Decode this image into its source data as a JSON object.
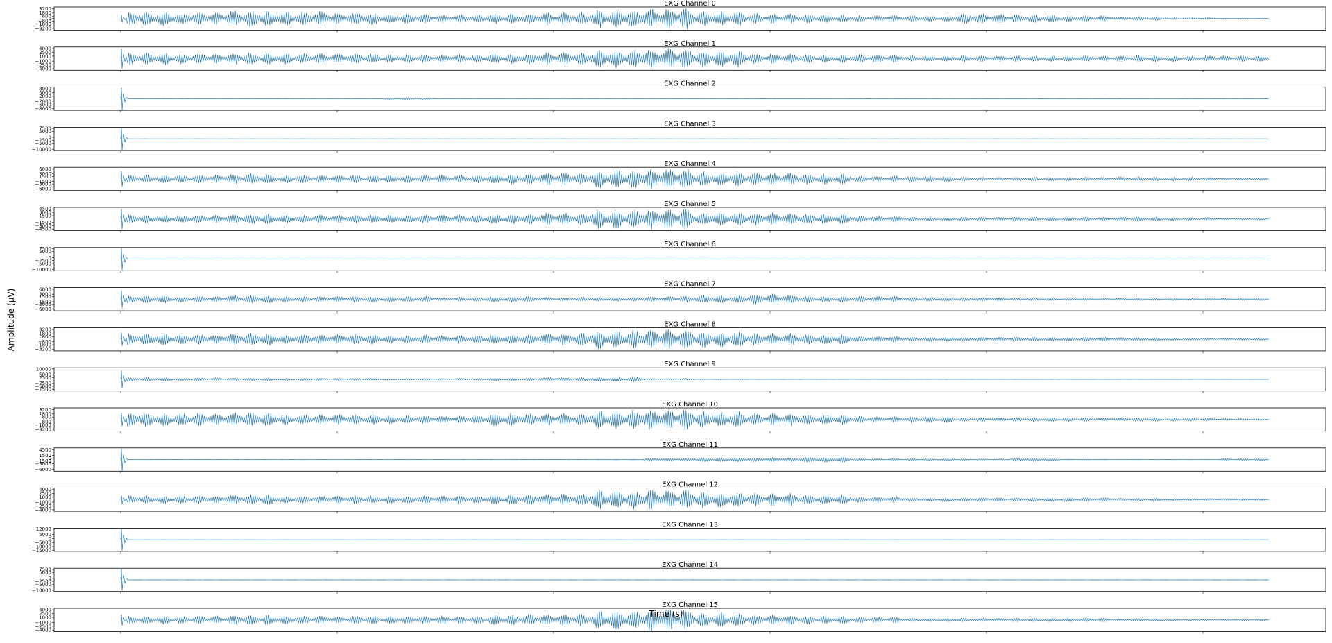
{
  "chart_data": {
    "type": "line",
    "ylabel": "Amplitude (μV)",
    "xlabel": "Time (s)",
    "line_color": "#1f77b4",
    "x_ticks_shown": false,
    "grid": false,
    "panels": [
      {
        "title": "EXG Channel 0",
        "yticks": [
          3200,
          1800,
          800,
          0,
          -800,
          -1800,
          -3200
        ],
        "ylim": [
          -3800,
          3800
        ],
        "spike": 0.35,
        "bursts": [
          0.7,
          0.6,
          0.8,
          0.7,
          0.6,
          0.5,
          0.4,
          0.5,
          0.6,
          0.9,
          1.0,
          0.7,
          0.5,
          0.4,
          0.3,
          0.3,
          0.5,
          0.4,
          0.3,
          0.2,
          0.1,
          0.05
        ]
      },
      {
        "title": "EXG Channel 1",
        "yticks": [
          4000,
          2500,
          1000,
          -1000,
          -2500,
          -4000
        ],
        "ylim": [
          -4600,
          4600
        ],
        "spike": 0.9,
        "bursts": [
          0.6,
          0.5,
          0.6,
          0.5,
          0.5,
          0.4,
          0.4,
          0.5,
          0.6,
          0.9,
          1.0,
          0.8,
          0.5,
          0.4,
          0.4,
          0.3,
          0.3,
          0.3,
          0.3,
          0.3,
          0.3,
          0.3
        ]
      },
      {
        "title": "EXG Channel 2",
        "yticks": [
          8000,
          5000,
          2000,
          -2000,
          -5000,
          -8000
        ],
        "ylim": [
          -9500,
          9500
        ],
        "spike": 1.0,
        "bursts": [
          0.02,
          0.02,
          0.02,
          0.02,
          0.02,
          0.1,
          0.02,
          0.02,
          0.02,
          0.02,
          0.02,
          0.02,
          0.02,
          0.02,
          0.02,
          0.02,
          0.02,
          0.02,
          0.02,
          0.02,
          0.02,
          0.02
        ]
      },
      {
        "title": "EXG Channel 3",
        "yticks": [
          7500,
          5000,
          0,
          -2500,
          -5000,
          -10000
        ],
        "ylim": [
          -11000,
          8500
        ],
        "spike": 1.0,
        "bursts": [
          0.01,
          0.01,
          0.01,
          0.01,
          0.01,
          0.01,
          0.01,
          0.01,
          0.01,
          0.01,
          0.01,
          0.01,
          0.01,
          0.01,
          0.01,
          0.01,
          0.01,
          0.01,
          0.01,
          0.01,
          0.01,
          0.01
        ]
      },
      {
        "title": "EXG Channel 4",
        "yticks": [
          6000,
          3000,
          1500,
          -1500,
          -3000,
          -6000
        ],
        "ylim": [
          -7000,
          7000
        ],
        "spike": 0.7,
        "bursts": [
          0.4,
          0.4,
          0.5,
          0.4,
          0.4,
          0.4,
          0.4,
          0.5,
          0.6,
          0.9,
          1.0,
          0.7,
          0.6,
          0.5,
          0.3,
          0.3,
          0.2,
          0.2,
          0.2,
          0.2,
          0.2,
          0.15
        ]
      },
      {
        "title": "EXG Channel 5",
        "yticks": [
          4500,
          3000,
          1500,
          -1500,
          -3000,
          -4500
        ],
        "ylim": [
          -5200,
          5200
        ],
        "spike": 0.9,
        "bursts": [
          0.4,
          0.4,
          0.5,
          0.4,
          0.4,
          0.4,
          0.4,
          0.5,
          0.6,
          0.9,
          1.0,
          0.7,
          0.6,
          0.5,
          0.3,
          0.2,
          0.2,
          0.2,
          0.2,
          0.2,
          0.15,
          0.1
        ]
      },
      {
        "title": "EXG Channel 6",
        "yticks": [
          7500,
          5000,
          0,
          -2500,
          -5000,
          -10000
        ],
        "ylim": [
          -11000,
          8500
        ],
        "spike": 1.0,
        "bursts": [
          0.01,
          0.01,
          0.01,
          0.01,
          0.01,
          0.01,
          0.01,
          0.01,
          0.01,
          0.01,
          0.01,
          0.01,
          0.01,
          0.01,
          0.01,
          0.01,
          0.01,
          0.01,
          0.01,
          0.01,
          0.01,
          0.01
        ]
      },
      {
        "title": "EXG Channel 7",
        "yticks": [
          6000,
          3000,
          1500,
          -1500,
          -3000,
          -6000
        ],
        "ylim": [
          -7000,
          7000
        ],
        "spike": 0.8,
        "bursts": [
          0.4,
          0.3,
          0.4,
          0.3,
          0.3,
          0.3,
          0.2,
          0.3,
          0.2,
          0.2,
          0.3,
          0.4,
          0.5,
          0.3,
          0.3,
          0.2,
          0.2,
          0.15,
          0.1,
          0.1,
          0.1,
          0.1
        ]
      },
      {
        "title": "EXG Channel 8",
        "yticks": [
          3200,
          1800,
          800,
          -800,
          -1800,
          -3200
        ],
        "ylim": [
          -3800,
          3800
        ],
        "spike": 0.6,
        "bursts": [
          0.6,
          0.5,
          0.6,
          0.5,
          0.5,
          0.4,
          0.4,
          0.5,
          0.6,
          0.9,
          1.0,
          0.8,
          0.6,
          0.5,
          0.3,
          0.2,
          0.2,
          0.2,
          0.2,
          0.15,
          0.1,
          0.1
        ]
      },
      {
        "title": "EXG Channel 9",
        "yticks": [
          10000,
          5000,
          2500,
          -2500,
          -5000,
          -7500
        ],
        "ylim": [
          -9000,
          11000
        ],
        "spike": 0.8,
        "bursts": [
          0.2,
          0.15,
          0.15,
          0.12,
          0.12,
          0.1,
          0.1,
          0.15,
          0.2,
          0.25,
          0.1,
          0.03,
          0.02,
          0.02,
          0.02,
          0.02,
          0.02,
          0.02,
          0.02,
          0.02,
          0.02,
          0.02
        ]
      },
      {
        "title": "EXG Channel 10",
        "yticks": [
          3200,
          1800,
          800,
          -800,
          -1800,
          -3200
        ],
        "ylim": [
          -3800,
          3800
        ],
        "spike": 0.6,
        "bursts": [
          0.7,
          0.6,
          0.7,
          0.5,
          0.5,
          0.4,
          0.4,
          0.6,
          0.6,
          0.9,
          1.0,
          0.8,
          0.6,
          0.5,
          0.3,
          0.3,
          0.2,
          0.2,
          0.2,
          0.2,
          0.15,
          0.1
        ]
      },
      {
        "title": "EXG Channel 11",
        "yticks": [
          4500,
          1500,
          0,
          -1500,
          -3000,
          -6000
        ],
        "ylim": [
          -7000,
          5500
        ],
        "spike": 1.0,
        "bursts": [
          0.02,
          0.02,
          0.02,
          0.02,
          0.02,
          0.02,
          0.02,
          0.02,
          0.02,
          0.05,
          0.15,
          0.2,
          0.2,
          0.25,
          0.1,
          0.1,
          0.08,
          0.15,
          0.05,
          0.03,
          0.03,
          0.1
        ]
      },
      {
        "title": "EXG Channel 12",
        "yticks": [
          4000,
          2500,
          1000,
          -1000,
          -2500,
          -4000
        ],
        "ylim": [
          -4600,
          4600
        ],
        "spike": 0.4,
        "bursts": [
          0.4,
          0.4,
          0.5,
          0.4,
          0.4,
          0.4,
          0.4,
          0.5,
          0.6,
          0.9,
          1.0,
          0.8,
          0.6,
          0.5,
          0.3,
          0.2,
          0.2,
          0.2,
          0.2,
          0.15,
          0.1,
          0.1
        ]
      },
      {
        "title": "EXG Channel 13",
        "yticks": [
          12000,
          5000,
          0,
          -5000,
          -10000,
          -15000
        ],
        "ylim": [
          -16000,
          13000
        ],
        "spike": 1.0,
        "bursts": [
          0.01,
          0.01,
          0.01,
          0.01,
          0.01,
          0.01,
          0.01,
          0.01,
          0.01,
          0.01,
          0.01,
          0.01,
          0.01,
          0.01,
          0.01,
          0.01,
          0.01,
          0.01,
          0.01,
          0.01,
          0.01,
          0.01
        ]
      },
      {
        "title": "EXG Channel 14",
        "yticks": [
          7500,
          5000,
          0,
          -2500,
          -5000,
          -10000
        ],
        "ylim": [
          -11000,
          8500
        ],
        "spike": 1.0,
        "bursts": [
          0.01,
          0.01,
          0.01,
          0.01,
          0.01,
          0.01,
          0.01,
          0.01,
          0.01,
          0.01,
          0.01,
          0.01,
          0.01,
          0.01,
          0.01,
          0.01,
          0.01,
          0.01,
          0.01,
          0.01,
          0.01,
          0.01
        ]
      },
      {
        "title": "EXG Channel 15",
        "yticks": [
          4000,
          2500,
          1000,
          -1000,
          -2500,
          -4000
        ],
        "ylim": [
          -4600,
          4600
        ],
        "spike": 0.5,
        "bursts": [
          0.4,
          0.4,
          0.5,
          0.4,
          0.4,
          0.4,
          0.4,
          0.5,
          0.6,
          0.9,
          1.0,
          0.7,
          0.5,
          0.4,
          0.3,
          0.2,
          0.2,
          0.2,
          0.2,
          0.15,
          0.1,
          0.1
        ]
      }
    ]
  }
}
